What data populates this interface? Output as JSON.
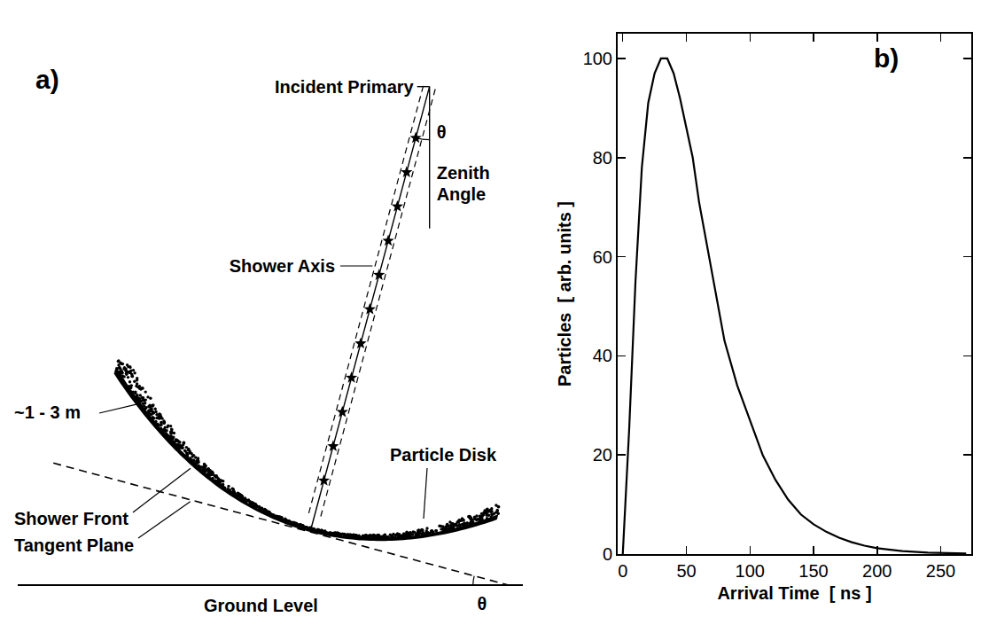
{
  "diagram": {
    "panel": "a)",
    "incident_primary": "Incident Primary",
    "zenith_angle_symbol": "θ",
    "zenith_angle": "Zenith Angle",
    "shower_axis": "Shower Axis",
    "disk_thickness": "~1 - 3 m",
    "particle_disk": "Particle Disk",
    "shower_front": "Shower Front",
    "tangent_plane": "Tangent Plane",
    "ground_level": "Ground Level",
    "ground_angle_symbol": "θ"
  },
  "chart_data": {
    "type": "line",
    "annotations": [
      "b)"
    ],
    "xlabel": "Arrival Time  [ ns ]",
    "ylabel": "Particles  [ arb. units ]",
    "x": [
      0,
      5,
      10,
      15,
      20,
      25,
      30,
      35,
      40,
      45,
      50,
      55,
      60,
      70,
      80,
      90,
      100,
      110,
      120,
      130,
      140,
      150,
      160,
      170,
      180,
      190,
      200,
      220,
      240,
      260,
      270
    ],
    "values": [
      0,
      25,
      55,
      78,
      91,
      97,
      100,
      100,
      97,
      92,
      86,
      80,
      71,
      57,
      43,
      34,
      27,
      20,
      15,
      11,
      8,
      6,
      4.5,
      3.3,
      2.4,
      1.7,
      1.2,
      0.6,
      0.3,
      0.15,
      0.1
    ],
    "xlim": [
      -4,
      274
    ],
    "ylim": [
      0,
      105
    ],
    "xticks": [
      0,
      50,
      100,
      150,
      200,
      250
    ],
    "yticks": [
      0,
      20,
      40,
      60,
      80,
      100
    ],
    "grid": false,
    "color": "#000000",
    "line_style": "solid"
  }
}
